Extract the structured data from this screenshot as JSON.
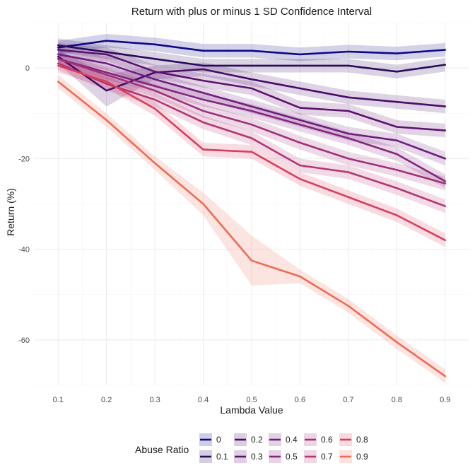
{
  "chart_data": {
    "type": "line",
    "title": "Return with plus or minus 1 SD Confidence Interval",
    "xlabel": "Lambda Value",
    "ylabel": "Return (%)",
    "x": [
      0.1,
      0.2,
      0.3,
      0.4,
      0.5,
      0.6,
      0.7,
      0.8,
      0.9
    ],
    "x_ticks": [
      "0.1",
      "0.2",
      "0.3",
      "0.4",
      "0.5",
      "0.6",
      "0.7",
      "0.8",
      "0.9"
    ],
    "y_ticks": [
      "0",
      "-20",
      "-40",
      "-60"
    ],
    "y_tick_values": [
      0,
      -20,
      -40,
      -60
    ],
    "xlim": [
      0.05,
      0.95
    ],
    "ylim": [
      -70,
      10
    ],
    "grid": true,
    "legend": {
      "title": "Abuse Ratio",
      "position": "bottom"
    },
    "series": [
      {
        "name": "0",
        "color": "#0d0887",
        "values": [
          4.5,
          6.0,
          5.2,
          3.8,
          3.8,
          3.0,
          3.6,
          3.2,
          4.0
        ],
        "sd": [
          1.5,
          1.5,
          1.5,
          1.5,
          1.5,
          1.5,
          1.5,
          1.5,
          1.5
        ]
      },
      {
        "name": "0.1",
        "color": "#2a0a5e",
        "values": [
          5.0,
          3.5,
          2.0,
          0.5,
          0.5,
          0.5,
          0.5,
          -0.8,
          0.7
        ],
        "sd": [
          1.5,
          1.5,
          1.5,
          1.5,
          1.5,
          1.5,
          1.5,
          1.5,
          1.5
        ]
      },
      {
        "name": "0.2",
        "color": "#4a0c6b",
        "values": [
          2.5,
          -5.0,
          -1.0,
          -0.3,
          -2.5,
          -4.5,
          -6.5,
          -7.5,
          -8.5
        ],
        "sd": [
          1.5,
          3.5,
          1.5,
          1.5,
          1.5,
          1.5,
          1.5,
          1.5,
          1.5
        ]
      },
      {
        "name": "0.3",
        "color": "#5c126e",
        "values": [
          4.0,
          3.0,
          -0.8,
          -2.8,
          -4.5,
          -8.8,
          -9.5,
          -13.0,
          -13.8
        ],
        "sd": [
          1.5,
          1.5,
          1.5,
          1.5,
          1.5,
          1.5,
          1.5,
          1.5,
          1.5
        ]
      },
      {
        "name": "0.4",
        "color": "#6f1e7e",
        "values": [
          3.0,
          1.0,
          -2.5,
          -5.5,
          -8.5,
          -11.5,
          -14.5,
          -16.0,
          -20.0
        ],
        "sd": [
          1.5,
          1.5,
          1.5,
          1.5,
          1.5,
          1.5,
          1.5,
          1.5,
          1.5
        ]
      },
      {
        "name": "0.5",
        "color": "#84267f",
        "values": [
          2.0,
          -1.0,
          -4.0,
          -7.0,
          -9.5,
          -12.5,
          -15.5,
          -19.0,
          -25.0
        ],
        "sd": [
          1.5,
          1.5,
          1.5,
          1.5,
          1.5,
          1.5,
          1.5,
          1.5,
          1.5
        ]
      },
      {
        "name": "0.6",
        "color": "#a1307a",
        "values": [
          2.0,
          -1.5,
          -5.0,
          -9.5,
          -12.5,
          -16.5,
          -20.0,
          -22.5,
          -25.5
        ],
        "sd": [
          1.5,
          1.5,
          1.5,
          1.5,
          1.5,
          1.5,
          1.5,
          1.5,
          1.5
        ]
      },
      {
        "name": "0.7",
        "color": "#b53573",
        "values": [
          1.0,
          -3.5,
          -7.0,
          -12.0,
          -15.5,
          -21.5,
          -23.0,
          -26.5,
          -30.5
        ],
        "sd": [
          1.5,
          1.5,
          1.5,
          1.5,
          1.5,
          1.5,
          1.5,
          1.5,
          1.5
        ]
      },
      {
        "name": "0.8",
        "color": "#d83f5e",
        "values": [
          0.5,
          -3.0,
          -9.0,
          -18.0,
          -18.5,
          -24.5,
          -28.5,
          -32.5,
          -38.0
        ],
        "sd": [
          1.5,
          1.5,
          1.5,
          1.5,
          1.5,
          1.5,
          1.5,
          1.5,
          1.5
        ]
      },
      {
        "name": "0.9",
        "color": "#f06a55",
        "values": [
          -3.0,
          -11.5,
          -21.0,
          -30.0,
          -42.5,
          -46.0,
          -52.5,
          -60.5,
          -68.0
        ],
        "sd": [
          1.5,
          1.5,
          1.5,
          2.5,
          5.5,
          1.5,
          1.5,
          1.5,
          1.5
        ]
      }
    ]
  }
}
